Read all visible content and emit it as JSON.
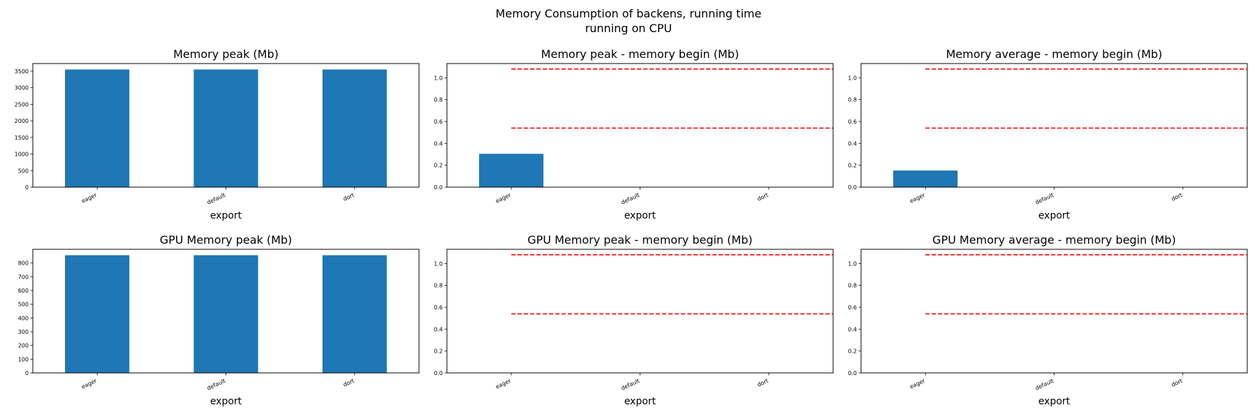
{
  "figure": {
    "suptitle_line1": "Memory Consumption of backens, running time",
    "suptitle_line2": "running on CPU"
  },
  "chart_data": [
    {
      "type": "bar",
      "title": "Memory peak (Mb)",
      "xlabel": "export",
      "ylabel": "",
      "categories": [
        "eager",
        "default",
        "dort"
      ],
      "values": [
        3550,
        3550,
        3550
      ],
      "ylim": [
        0,
        3730
      ],
      "yticks": [
        0,
        500,
        1000,
        1500,
        2000,
        2500,
        3000,
        3500
      ],
      "bar_color": "#1f77b4",
      "grid": false
    },
    {
      "type": "bar",
      "title": "Memory peak - memory begin (Mb)",
      "xlabel": "export",
      "ylabel": "",
      "categories": [
        "eager",
        "default",
        "dort"
      ],
      "values": [
        0.305,
        0,
        0
      ],
      "ylim": [
        0,
        1.13
      ],
      "yticks": [
        0.0,
        0.2,
        0.4,
        0.6,
        0.8,
        1.0
      ],
      "bar_color": "#1f77b4",
      "reference_lines": [
        1.08,
        0.54
      ],
      "reference_line_color": "#ff0000",
      "reference_line_style": "dashed",
      "grid": false
    },
    {
      "type": "bar",
      "title": "Memory average - memory begin (Mb)",
      "xlabel": "export",
      "ylabel": "",
      "categories": [
        "eager",
        "default",
        "dort"
      ],
      "values": [
        0.152,
        0,
        0
      ],
      "ylim": [
        0,
        1.13
      ],
      "yticks": [
        0.0,
        0.2,
        0.4,
        0.6,
        0.8,
        1.0
      ],
      "bar_color": "#1f77b4",
      "reference_lines": [
        1.08,
        0.54
      ],
      "reference_line_color": "#ff0000",
      "reference_line_style": "dashed",
      "grid": false
    },
    {
      "type": "bar",
      "title": "GPU Memory peak (Mb)",
      "xlabel": "export",
      "ylabel": "",
      "categories": [
        "eager",
        "default",
        "dort"
      ],
      "values": [
        857,
        857,
        857
      ],
      "ylim": [
        0,
        900
      ],
      "yticks": [
        0,
        100,
        200,
        300,
        400,
        500,
        600,
        700,
        800
      ],
      "bar_color": "#1f77b4",
      "grid": false
    },
    {
      "type": "bar",
      "title": "GPU Memory peak - memory begin (Mb)",
      "xlabel": "export",
      "ylabel": "",
      "categories": [
        "eager",
        "default",
        "dort"
      ],
      "values": [
        0,
        0,
        0
      ],
      "ylim": [
        0,
        1.13
      ],
      "yticks": [
        0.0,
        0.2,
        0.4,
        0.6,
        0.8,
        1.0
      ],
      "bar_color": "#1f77b4",
      "reference_lines": [
        1.08,
        0.54
      ],
      "reference_line_color": "#ff0000",
      "reference_line_style": "dashed",
      "grid": false
    },
    {
      "type": "bar",
      "title": "GPU Memory average - memory begin (Mb)",
      "xlabel": "export",
      "ylabel": "",
      "categories": [
        "eager",
        "default",
        "dort"
      ],
      "values": [
        0,
        0,
        0
      ],
      "ylim": [
        0,
        1.13
      ],
      "yticks": [
        0.0,
        0.2,
        0.4,
        0.6,
        0.8,
        1.0
      ],
      "bar_color": "#1f77b4",
      "reference_lines": [
        1.08,
        0.54
      ],
      "reference_line_color": "#ff0000",
      "reference_line_style": "dashed",
      "grid": false
    }
  ]
}
